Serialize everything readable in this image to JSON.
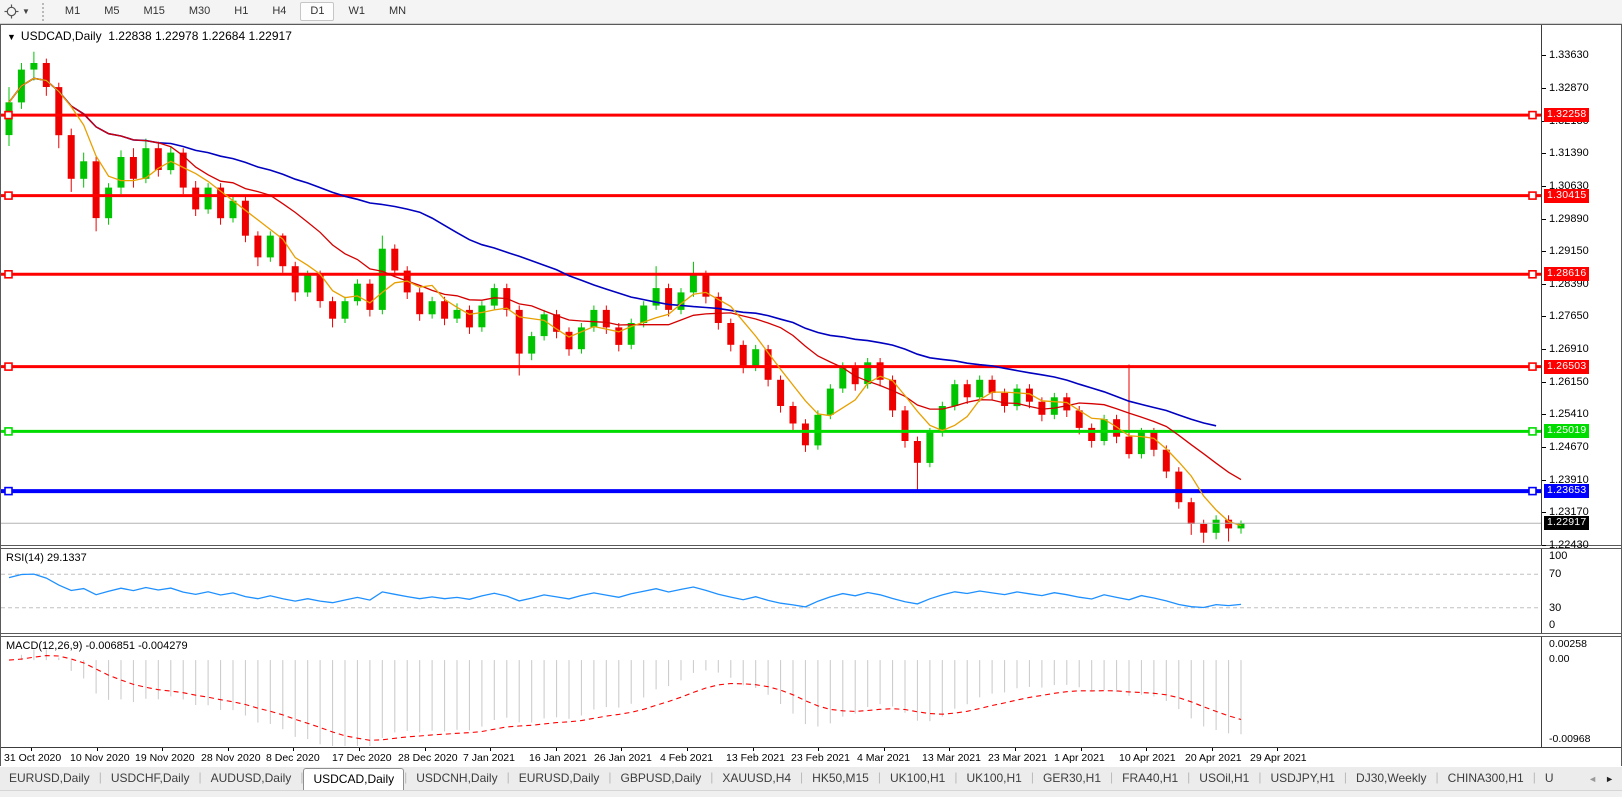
{
  "toolbar": {
    "cursor_tool_caret": "▼",
    "timeframes": [
      {
        "label": "M1",
        "active": false
      },
      {
        "label": "M5",
        "active": false
      },
      {
        "label": "M15",
        "active": false
      },
      {
        "label": "M30",
        "active": false
      },
      {
        "label": "H1",
        "active": false
      },
      {
        "label": "H4",
        "active": false
      },
      {
        "label": "D1",
        "active": true
      },
      {
        "label": "W1",
        "active": false
      },
      {
        "label": "MN",
        "active": false
      }
    ]
  },
  "chart": {
    "title_triangle": "▼",
    "symbol": "USDCAD,Daily",
    "ohlc": {
      "open": "1.22838",
      "high": "1.22978",
      "low": "1.22684",
      "close": "1.22917"
    }
  },
  "rsi_panel": {
    "label": "RSI(14) 29.1337",
    "axis_labels": [
      "100",
      "70",
      "30",
      "0"
    ]
  },
  "macd_panel": {
    "label": "MACD(12,26,9) -0.006851 -0.004279",
    "axis_labels": [
      "0.00258",
      "0.00",
      "-0.00968"
    ]
  },
  "colors": {
    "candle_up": "#00C400",
    "candle_down": "#EE0000",
    "ma_fast": "#E8A000",
    "ma_mid": "#D40000",
    "ma_slow": "#0000C0",
    "level_red": "#FF0000",
    "level_green": "#00DC00",
    "level_blue": "#0000FF",
    "current_price_line": "#B4B4B4",
    "current_label_bg": "#000000",
    "rsi_line": "#1E90FF",
    "rsi_grid": "#C0C0C0",
    "macd_hist": "#C8C8C8",
    "macd_signal": "#FF0000"
  },
  "chart_data": {
    "type": "candlestick",
    "symbol": "USDCAD",
    "timeframe": "Daily",
    "price_ylim": [
      1.2242,
      1.3432
    ],
    "price_ticks": [
      "1.33630",
      "1.32870",
      "1.32130",
      "1.31390",
      "1.30630",
      "1.29890",
      "1.29150",
      "1.28390",
      "1.27650",
      "1.26910",
      "1.26150",
      "1.25410",
      "1.24670",
      "1.23910",
      "1.23170",
      "1.22430"
    ],
    "levels": [
      {
        "price": "1.32258",
        "value": 1.32258,
        "color_key": "level_red"
      },
      {
        "price": "1.30415",
        "value": 1.30415,
        "color_key": "level_red"
      },
      {
        "price": "1.28616",
        "value": 1.28616,
        "color_key": "level_red"
      },
      {
        "price": "1.26503",
        "value": 1.26503,
        "color_key": "level_red"
      },
      {
        "price": "1.25019",
        "value": 1.25019,
        "color_key": "level_green"
      },
      {
        "price": "1.23653",
        "value": 1.23653,
        "color_key": "level_blue"
      }
    ],
    "current_price": {
      "label": "1.22917",
      "value": 1.22917
    },
    "moving_averages": [
      {
        "name": "fast",
        "period": 5,
        "color_key": "ma_fast"
      },
      {
        "name": "medium",
        "period": 13,
        "color_key": "ma_mid"
      },
      {
        "name": "slow",
        "period": 34,
        "color_key": "ma_slow"
      }
    ],
    "rsi": {
      "period": 14,
      "current": 29.1337,
      "grid_levels": [
        70,
        30
      ],
      "ylim": [
        0,
        100
      ]
    },
    "macd": {
      "fast": 12,
      "slow": 26,
      "signal": 9,
      "main_current": -0.006851,
      "signal_current": -0.004279,
      "ylim": [
        -0.00968,
        0.00258
      ]
    },
    "dates": [
      "31 Oct 2020",
      "10 Nov 2020",
      "19 Nov 2020",
      "28 Nov 2020",
      "8 Dec 2020",
      "17 Dec 2020",
      "28 Dec 2020",
      "7 Jan 2021",
      "16 Jan 2021",
      "26 Jan 2021",
      "4 Feb 2021",
      "13 Feb 2021",
      "23 Feb 2021",
      "4 Mar 2021",
      "13 Mar 2021",
      "23 Mar 2021",
      "1 Apr 2021",
      "10 Apr 2021",
      "20 Apr 2021",
      "29 Apr 2021"
    ],
    "candles": [
      [
        1.318,
        1.329,
        1.3155,
        1.3255
      ],
      [
        1.3255,
        1.3345,
        1.324,
        1.333
      ],
      [
        1.333,
        1.3371,
        1.3305,
        1.3345
      ],
      [
        1.3345,
        1.3355,
        1.327,
        1.329
      ],
      [
        1.329,
        1.33,
        1.315,
        1.318
      ],
      [
        1.318,
        1.3195,
        1.305,
        1.308
      ],
      [
        1.308,
        1.314,
        1.306,
        1.312
      ],
      [
        1.312,
        1.313,
        1.296,
        1.299
      ],
      [
        1.299,
        1.307,
        1.2975,
        1.306
      ],
      [
        1.306,
        1.3145,
        1.3045,
        1.313
      ],
      [
        1.313,
        1.315,
        1.306,
        1.308
      ],
      [
        1.308,
        1.3172,
        1.307,
        1.315
      ],
      [
        1.315,
        1.3165,
        1.3085,
        1.31
      ],
      [
        1.31,
        1.3155,
        1.309,
        1.314
      ],
      [
        1.314,
        1.315,
        1.3045,
        1.306
      ],
      [
        1.306,
        1.3075,
        1.2995,
        1.301
      ],
      [
        1.301,
        1.307,
        1.3,
        1.306
      ],
      [
        1.306,
        1.307,
        1.2975,
        1.299
      ],
      [
        1.299,
        1.304,
        1.298,
        1.303
      ],
      [
        1.303,
        1.304,
        1.2935,
        1.295
      ],
      [
        1.295,
        1.296,
        1.288,
        1.29
      ],
      [
        1.29,
        1.296,
        1.289,
        1.295
      ],
      [
        1.295,
        1.2955,
        1.2865,
        1.288
      ],
      [
        1.288,
        1.289,
        1.28,
        1.282
      ],
      [
        1.282,
        1.287,
        1.281,
        1.286
      ],
      [
        1.286,
        1.287,
        1.2785,
        1.28
      ],
      [
        1.28,
        1.281,
        1.274,
        1.276
      ],
      [
        1.276,
        1.281,
        1.275,
        1.28
      ],
      [
        1.28,
        1.285,
        1.279,
        1.284
      ],
      [
        1.284,
        1.285,
        1.2765,
        1.278
      ],
      [
        1.278,
        1.295,
        1.277,
        1.292
      ],
      [
        1.292,
        1.293,
        1.2855,
        1.287
      ],
      [
        1.287,
        1.288,
        1.2805,
        1.282
      ],
      [
        1.282,
        1.283,
        1.2755,
        1.277
      ],
      [
        1.277,
        1.281,
        1.276,
        1.28
      ],
      [
        1.28,
        1.281,
        1.2745,
        1.276
      ],
      [
        1.276,
        1.2795,
        1.275,
        1.278
      ],
      [
        1.278,
        1.279,
        1.2725,
        1.274
      ],
      [
        1.274,
        1.28,
        1.273,
        1.279
      ],
      [
        1.279,
        1.284,
        1.278,
        1.283
      ],
      [
        1.283,
        1.284,
        1.2765,
        1.278
      ],
      [
        1.278,
        1.279,
        1.263,
        1.268
      ],
      [
        1.268,
        1.273,
        1.2665,
        1.272
      ],
      [
        1.272,
        1.278,
        1.271,
        1.277
      ],
      [
        1.277,
        1.278,
        1.2715,
        1.273
      ],
      [
        1.273,
        1.274,
        1.2675,
        1.269
      ],
      [
        1.269,
        1.275,
        1.268,
        1.274
      ],
      [
        1.274,
        1.279,
        1.273,
        1.278
      ],
      [
        1.278,
        1.279,
        1.2725,
        1.274
      ],
      [
        1.274,
        1.275,
        1.2685,
        1.27
      ],
      [
        1.27,
        1.276,
        1.269,
        1.275
      ],
      [
        1.275,
        1.28,
        1.274,
        1.279
      ],
      [
        1.279,
        1.288,
        1.278,
        1.283
      ],
      [
        1.283,
        1.284,
        1.2765,
        1.278
      ],
      [
        1.278,
        1.283,
        1.277,
        1.282
      ],
      [
        1.282,
        1.289,
        1.281,
        1.286
      ],
      [
        1.286,
        1.287,
        1.2795,
        1.281
      ],
      [
        1.281,
        1.282,
        1.2735,
        1.275
      ],
      [
        1.275,
        1.276,
        1.2685,
        1.27
      ],
      [
        1.27,
        1.271,
        1.2635,
        1.265
      ],
      [
        1.265,
        1.27,
        1.264,
        1.269
      ],
      [
        1.269,
        1.27,
        1.2605,
        1.262
      ],
      [
        1.262,
        1.263,
        1.2545,
        1.256
      ],
      [
        1.256,
        1.257,
        1.25,
        1.252
      ],
      [
        1.252,
        1.253,
        1.2455,
        1.247
      ],
      [
        1.247,
        1.255,
        1.246,
        1.254
      ],
      [
        1.254,
        1.261,
        1.253,
        1.26
      ],
      [
        1.26,
        1.266,
        1.259,
        1.265
      ],
      [
        1.265,
        1.266,
        1.2595,
        1.261
      ],
      [
        1.261,
        1.267,
        1.26,
        1.266
      ],
      [
        1.266,
        1.267,
        1.2605,
        1.262
      ],
      [
        1.262,
        1.263,
        1.2535,
        1.255
      ],
      [
        1.255,
        1.256,
        1.2465,
        1.248
      ],
      [
        1.248,
        1.249,
        1.2365,
        1.243
      ],
      [
        1.243,
        1.251,
        1.242,
        1.25
      ],
      [
        1.25,
        1.257,
        1.249,
        1.256
      ],
      [
        1.256,
        1.262,
        1.255,
        1.261
      ],
      [
        1.261,
        1.262,
        1.2565,
        1.258
      ],
      [
        1.258,
        1.263,
        1.257,
        1.262
      ],
      [
        1.262,
        1.263,
        1.2575,
        1.259
      ],
      [
        1.259,
        1.26,
        1.2545,
        1.256
      ],
      [
        1.256,
        1.261,
        1.255,
        1.26
      ],
      [
        1.26,
        1.261,
        1.2555,
        1.257
      ],
      [
        1.257,
        1.258,
        1.2525,
        1.254
      ],
      [
        1.254,
        1.259,
        1.253,
        1.258
      ],
      [
        1.258,
        1.259,
        1.2535,
        1.255
      ],
      [
        1.255,
        1.256,
        1.2495,
        1.251
      ],
      [
        1.251,
        1.252,
        1.2465,
        1.248
      ],
      [
        1.248,
        1.254,
        1.247,
        1.253
      ],
      [
        1.253,
        1.254,
        1.2475,
        1.249
      ],
      [
        1.249,
        1.2655,
        1.244,
        1.245
      ],
      [
        1.245,
        1.251,
        1.244,
        1.25
      ],
      [
        1.25,
        1.251,
        1.2445,
        1.246
      ],
      [
        1.246,
        1.247,
        1.2395,
        1.241
      ],
      [
        1.241,
        1.242,
        1.2325,
        1.234
      ],
      [
        1.234,
        1.235,
        1.2265,
        1.229
      ],
      [
        1.229,
        1.23,
        1.2247,
        1.227
      ],
      [
        1.227,
        1.231,
        1.2255,
        1.23
      ],
      [
        1.23,
        1.231,
        1.225,
        1.228
      ],
      [
        1.228,
        1.2298,
        1.2268,
        1.2292
      ]
    ]
  },
  "tabs": {
    "items": [
      "EURUSD,Daily",
      "USDCHF,Daily",
      "AUDUSD,Daily",
      "USDCAD,Daily",
      "USDCNH,Daily",
      "EURUSD,Daily",
      "GBPUSD,Daily",
      "XAUUSD,H4",
      "HK50,M15",
      "UK100,H1",
      "UK100,H1",
      "GER30,H1",
      "FRA40,H1",
      "USOil,H1",
      "USDJPY,H1",
      "DJ30,Weekly",
      "CHINA300,H1",
      "U"
    ],
    "active_index": 3,
    "scroll_left": "◄",
    "scroll_right": "►"
  }
}
